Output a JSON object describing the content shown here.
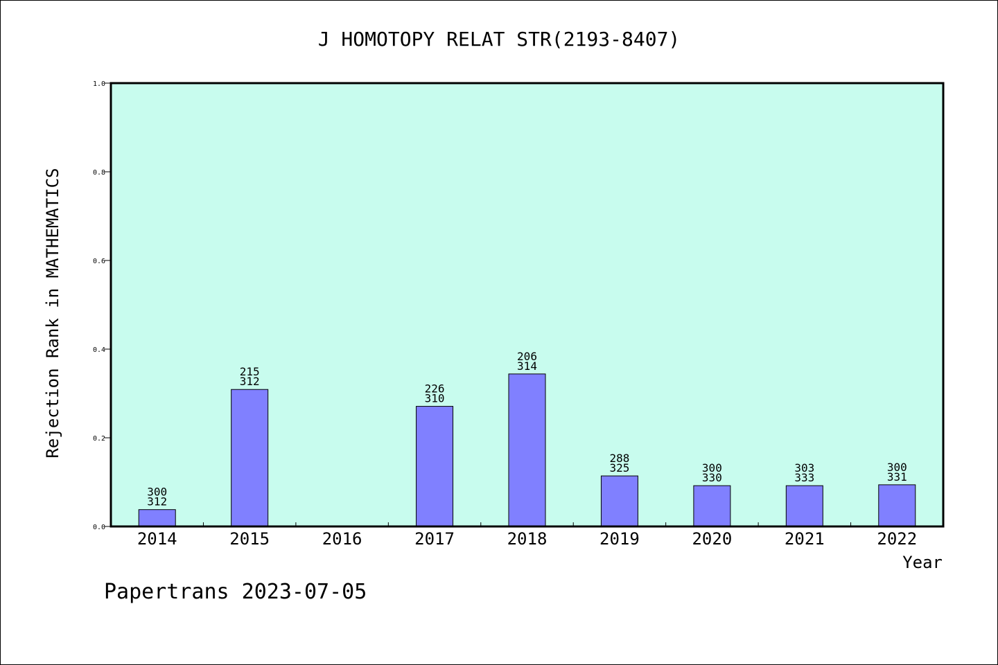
{
  "chart_data": {
    "type": "bar",
    "title": "J HOMOTOPY RELAT STR(2193-8407)",
    "xlabel": "Year",
    "ylabel": "Rejection Rank in MATHEMATICS",
    "ylim": [
      0,
      1.0
    ],
    "yticks": [
      "0.0",
      "0.2",
      "0.4",
      "0.6",
      "0.8",
      "1.0"
    ],
    "grid": false,
    "categories": [
      "2014",
      "2015",
      "2016",
      "2017",
      "2018",
      "2019",
      "2020",
      "2021",
      "2022"
    ],
    "values": [
      0.038,
      0.309,
      null,
      0.271,
      0.344,
      0.114,
      0.092,
      0.092,
      0.094
    ],
    "bar_labels": [
      [
        "300",
        "312"
      ],
      [
        "215",
        "312"
      ],
      null,
      [
        "226",
        "310"
      ],
      [
        "206",
        "314"
      ],
      [
        "288",
        "325"
      ],
      [
        "300",
        "330"
      ],
      [
        "303",
        "333"
      ],
      [
        "300",
        "331"
      ]
    ],
    "plot_background": "#c8fcee",
    "bar_color": "#8080ff"
  },
  "footer": {
    "text": "Papertrans 2023-07-05"
  }
}
